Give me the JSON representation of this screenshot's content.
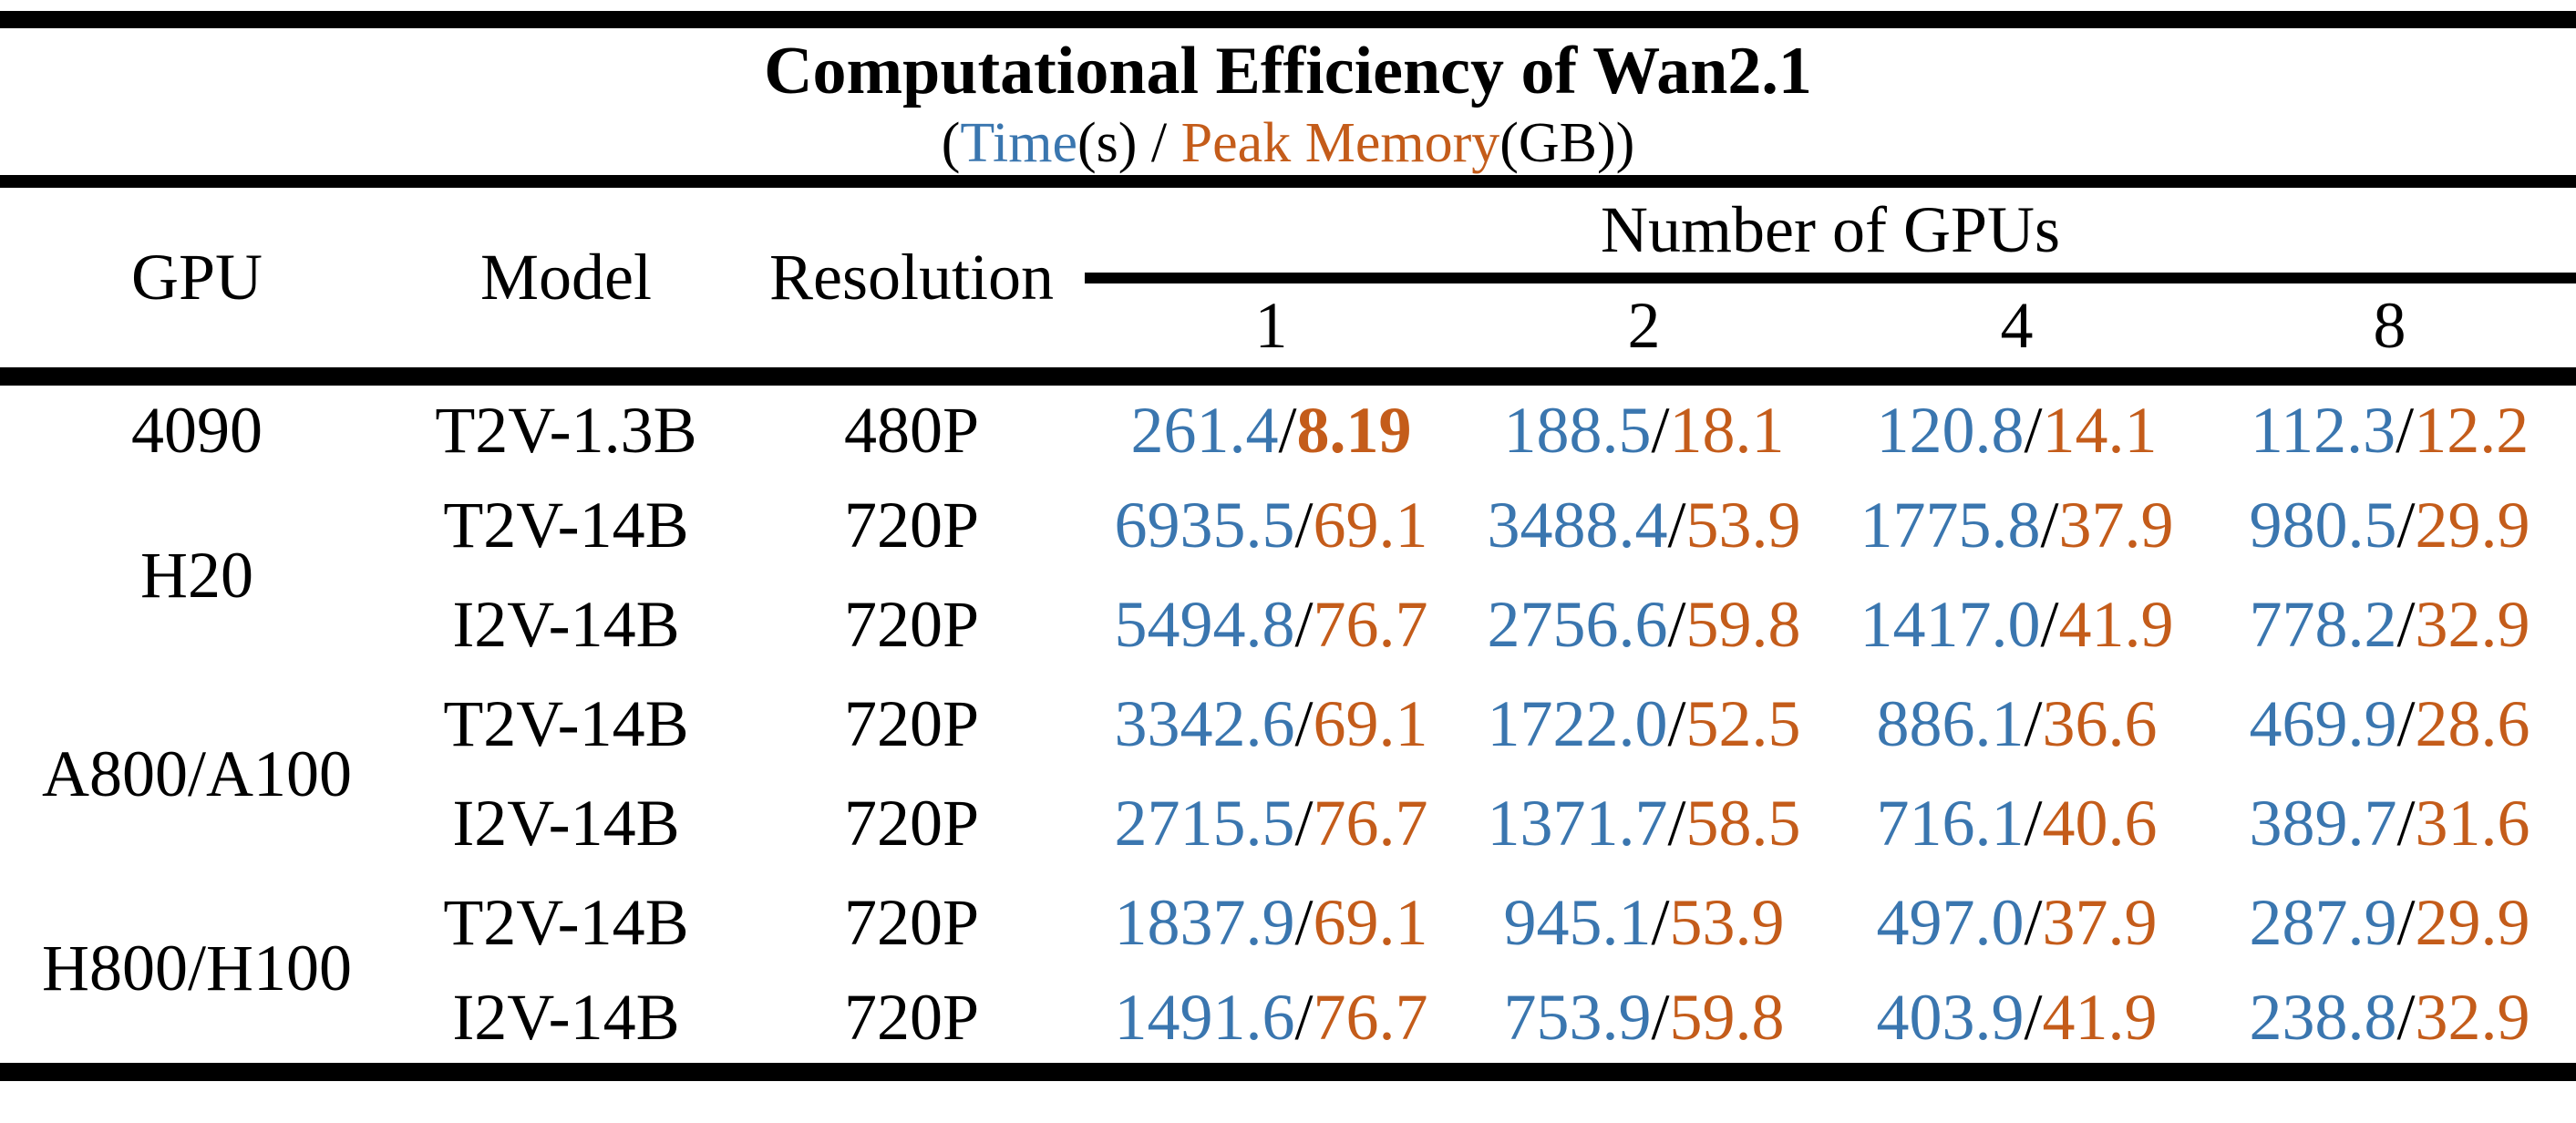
{
  "chart_data": {
    "type": "table",
    "title": "Computational Efficiency of Wan2.1",
    "subtitle": {
      "prefix": "(",
      "time_label": "Time",
      "after_time": "(s) / ",
      "memory_label": "Peak Memory",
      "suffix": "(GB))"
    },
    "separator": "/",
    "colors": {
      "time": "#3a76af",
      "memory": "#c45c1a",
      "rule": "#000000",
      "text": "#000000",
      "background": "#ffffff"
    },
    "header": {
      "gpu": "GPU",
      "model": "Model",
      "resolution": "Resolution",
      "group": "Number of GPUs",
      "gpu_counts": [
        "1",
        "2",
        "4",
        "8"
      ]
    },
    "rows": [
      {
        "gpu": "4090",
        "gpu_rowspan": 1,
        "model": "T2V-1.3B",
        "resolution": "480P",
        "cells": [
          {
            "time": "261.4",
            "memory": "8.19",
            "memory_bold": true
          },
          {
            "time": "188.5",
            "memory": "18.1"
          },
          {
            "time": "120.8",
            "memory": "14.1"
          },
          {
            "time": "112.3",
            "memory": "12.2"
          }
        ]
      },
      {
        "gpu": "H20",
        "gpu_rowspan": 2,
        "model": "T2V-14B",
        "resolution": "720P",
        "cells": [
          {
            "time": "6935.5",
            "memory": "69.1"
          },
          {
            "time": "3488.4",
            "memory": "53.9"
          },
          {
            "time": "1775.8",
            "memory": "37.9"
          },
          {
            "time": "980.5",
            "memory": "29.9"
          }
        ]
      },
      {
        "model": "I2V-14B",
        "resolution": "720P",
        "cells": [
          {
            "time": "5494.8",
            "memory": "76.7"
          },
          {
            "time": "2756.6",
            "memory": "59.8"
          },
          {
            "time": "1417.0",
            "memory": "41.9"
          },
          {
            "time": "778.2",
            "memory": "32.9"
          }
        ]
      },
      {
        "gpu": "A800/A100",
        "gpu_rowspan": 2,
        "model": "T2V-14B",
        "resolution": "720P",
        "cells": [
          {
            "time": "3342.6",
            "memory": "69.1"
          },
          {
            "time": "1722.0",
            "memory": "52.5"
          },
          {
            "time": "886.1",
            "memory": "36.6"
          },
          {
            "time": "469.9",
            "memory": "28.6"
          }
        ]
      },
      {
        "model": "I2V-14B",
        "resolution": "720P",
        "cells": [
          {
            "time": "2715.5",
            "memory": "76.7"
          },
          {
            "time": "1371.7",
            "memory": "58.5"
          },
          {
            "time": "716.1",
            "memory": "40.6"
          },
          {
            "time": "389.7",
            "memory": "31.6"
          }
        ]
      },
      {
        "gpu": "H800/H100",
        "gpu_rowspan": 2,
        "model": "T2V-14B",
        "resolution": "720P",
        "cells": [
          {
            "time": "1837.9",
            "memory": "69.1"
          },
          {
            "time": "945.1",
            "memory": "53.9"
          },
          {
            "time": "497.0",
            "memory": "37.9"
          },
          {
            "time": "287.9",
            "memory": "29.9"
          }
        ]
      },
      {
        "model": "I2V-14B",
        "resolution": "720P",
        "cells": [
          {
            "time": "1491.6",
            "memory": "76.7"
          },
          {
            "time": "753.9",
            "memory": "59.8"
          },
          {
            "time": "403.9",
            "memory": "41.9"
          },
          {
            "time": "238.8",
            "memory": "32.9"
          }
        ]
      }
    ]
  }
}
